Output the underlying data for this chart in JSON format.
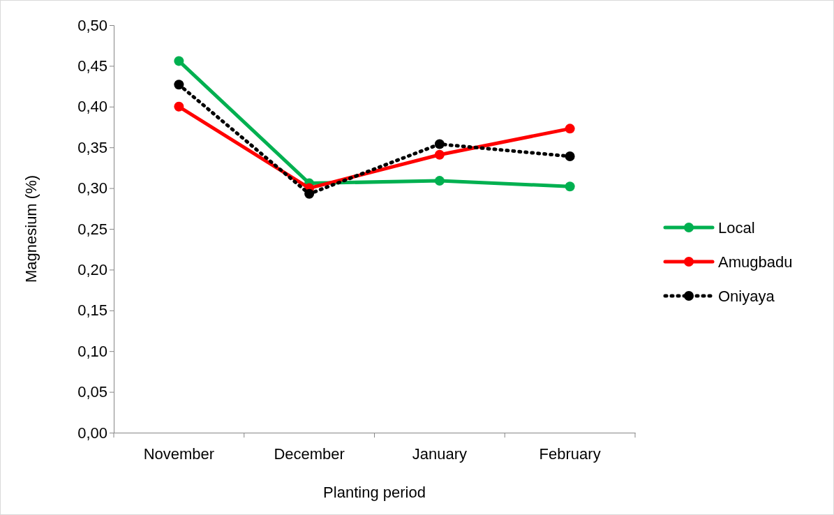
{
  "chart_data": {
    "type": "line",
    "xlabel": "Planting period",
    "ylabel": "Magnesium (%)",
    "categories": [
      "November",
      "December",
      "January",
      "February"
    ],
    "ylim": [
      0,
      0.5
    ],
    "yticks": [
      {
        "value": 0,
        "label": "0,00"
      },
      {
        "value": 0.05,
        "label": "0,05"
      },
      {
        "value": 0.1,
        "label": "0,10"
      },
      {
        "value": 0.15,
        "label": "0,15"
      },
      {
        "value": 0.2,
        "label": "0,20"
      },
      {
        "value": 0.25,
        "label": "0,25"
      },
      {
        "value": 0.3,
        "label": "0,30"
      },
      {
        "value": 0.35,
        "label": "0,35"
      },
      {
        "value": 0.4,
        "label": "0,40"
      },
      {
        "value": 0.45,
        "label": "0,45"
      },
      {
        "value": 0.5,
        "label": "0,50"
      }
    ],
    "grid": false,
    "legend": "right",
    "marker": "circle",
    "series": [
      {
        "name": "Local",
        "color": "#00b050",
        "line_style": "solid",
        "values": [
          0.456,
          0.306,
          0.309,
          0.302
        ]
      },
      {
        "name": "Amugbadu",
        "color": "#ff0000",
        "line_style": "solid",
        "values": [
          0.4,
          0.3,
          0.341,
          0.373
        ]
      },
      {
        "name": "Oniyaya",
        "color": "#000000",
        "line_style": "dotted",
        "values": [
          0.427,
          0.293,
          0.354,
          0.339
        ]
      }
    ]
  }
}
